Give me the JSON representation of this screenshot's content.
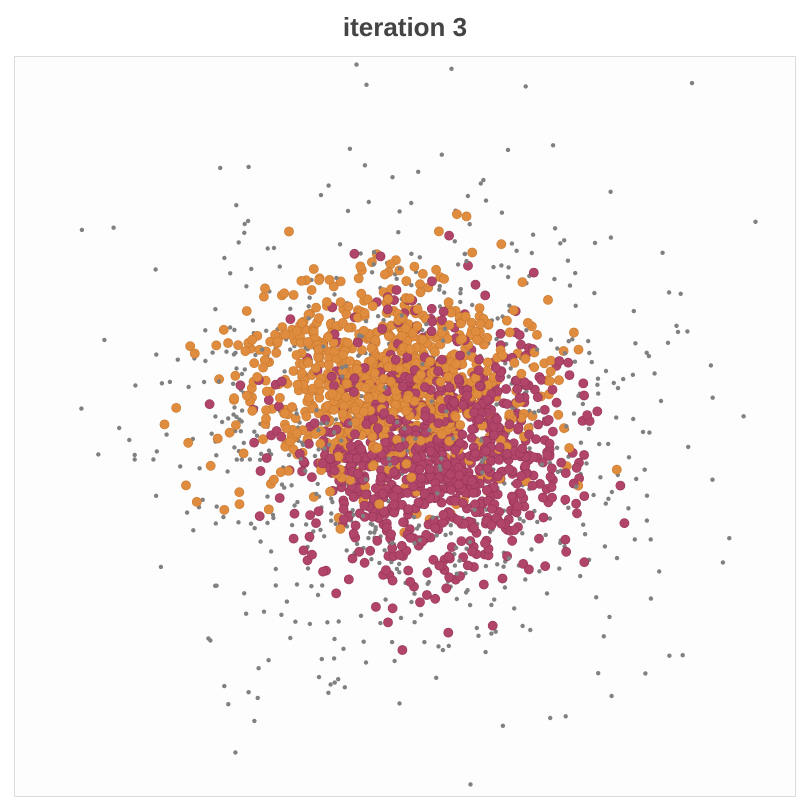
{
  "chart_data": {
    "type": "scatter",
    "title": "iteration 3",
    "xlabel": "",
    "ylabel": "",
    "xlim": [
      -5,
      5
    ],
    "ylim": [
      -5,
      5
    ],
    "grid": false,
    "legend": "none",
    "series": [
      {
        "role": "background",
        "color": "#808080",
        "radius": 2.2,
        "count": 900,
        "center": [
          0.0,
          0.0
        ],
        "spread": [
          1.55,
          1.55
        ],
        "seed": 11
      },
      {
        "role": "cluster-a",
        "color": "#e08c3f",
        "stroke": "#c9792f",
        "radius": 4.6,
        "count": 850,
        "center": [
          -0.35,
          0.55
        ],
        "spread": [
          0.9,
          0.7
        ],
        "seed": 23
      },
      {
        "role": "cluster-b",
        "color": "#b04469",
        "stroke": "#963558",
        "radius": 4.6,
        "count": 950,
        "center": [
          0.35,
          -0.3
        ],
        "spread": [
          0.85,
          0.85
        ],
        "seed": 37
      }
    ]
  }
}
